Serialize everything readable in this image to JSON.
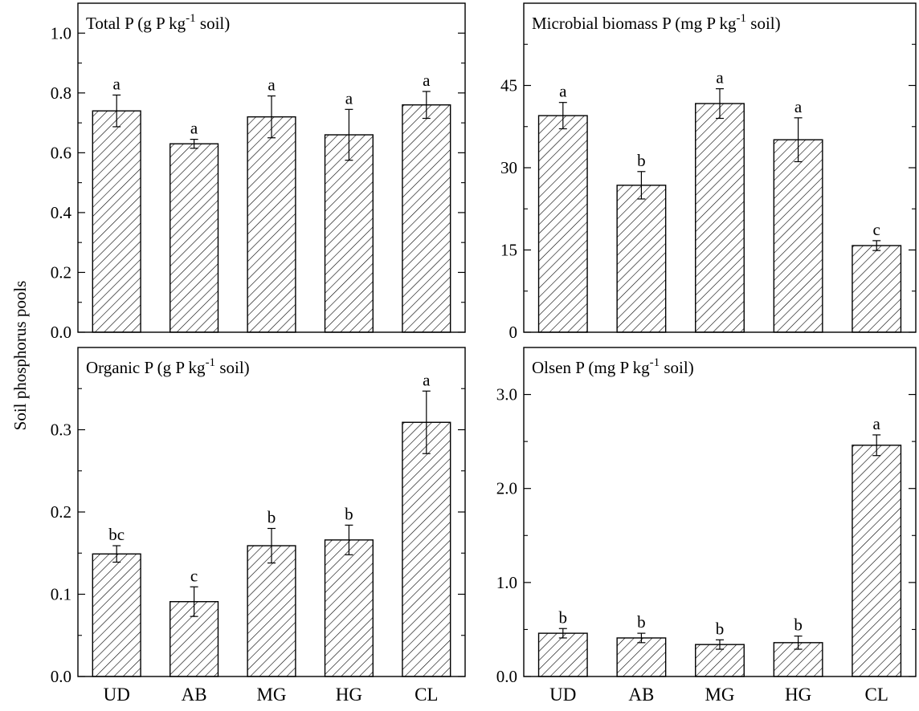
{
  "figure": {
    "ylabel": "Soil phosphorus pools"
  },
  "chart_data": [
    {
      "type": "bar",
      "title": "Total P (g P kg-1 soil)",
      "title_parts": {
        "pre": "Total P (g P kg",
        "sup": "-1",
        "post": " soil)"
      },
      "categories": [
        "UD",
        "AB",
        "MG",
        "HG",
        "CL"
      ],
      "values": [
        0.74,
        0.63,
        0.72,
        0.66,
        0.76
      ],
      "errors": [
        0.053,
        0.015,
        0.07,
        0.085,
        0.045
      ],
      "significance": [
        "a",
        "a",
        "a",
        "a",
        "a"
      ],
      "ylim": [
        0,
        1.1
      ],
      "yticks": [
        0.0,
        0.2,
        0.4,
        0.6,
        0.8,
        1.0
      ],
      "ytick_labels": [
        "0.0",
        "0.2",
        "0.4",
        "0.6",
        "0.8",
        "1.0"
      ],
      "yminor": [
        0.1,
        0.3,
        0.5,
        0.7,
        0.9
      ],
      "show_xticklabels": false,
      "xlabel": "",
      "ylabel": "",
      "grid": false,
      "pattern": "diagonal-hatch"
    },
    {
      "type": "bar",
      "title": "Microbial biomass P (mg P kg-1 soil)",
      "title_parts": {
        "pre": "Microbial biomass P (mg P kg",
        "sup": "-1",
        "post": " soil)"
      },
      "categories": [
        "UD",
        "AB",
        "MG",
        "HG",
        "CL"
      ],
      "values": [
        39.5,
        26.8,
        41.7,
        35.1,
        15.8
      ],
      "errors": [
        2.4,
        2.5,
        2.7,
        4.0,
        0.9
      ],
      "significance": [
        "a",
        "b",
        "a",
        "a",
        "c"
      ],
      "ylim": [
        0,
        60
      ],
      "yticks": [
        0,
        15,
        30,
        45
      ],
      "ytick_labels": [
        "0",
        "15",
        "30",
        "45"
      ],
      "yminor": [
        7.5,
        22.5,
        37.5,
        52.5
      ],
      "show_xticklabels": false,
      "xlabel": "",
      "ylabel": "",
      "grid": false,
      "pattern": "diagonal-hatch"
    },
    {
      "type": "bar",
      "title": "Organic P (g P kg-1 soil)",
      "title_parts": {
        "pre": "Organic P (g P kg",
        "sup": "-1",
        "post": " soil)"
      },
      "categories": [
        "UD",
        "AB",
        "MG",
        "HG",
        "CL"
      ],
      "values": [
        0.149,
        0.091,
        0.159,
        0.166,
        0.309
      ],
      "errors": [
        0.01,
        0.018,
        0.021,
        0.018,
        0.038
      ],
      "significance": [
        "bc",
        "c",
        "b",
        "b",
        "a"
      ],
      "ylim": [
        0,
        0.4
      ],
      "yticks": [
        0.0,
        0.1,
        0.2,
        0.3
      ],
      "ytick_labels": [
        "0.0",
        "0.1",
        "0.2",
        "0.3"
      ],
      "yminor": [
        0.05,
        0.15,
        0.25,
        0.35
      ],
      "show_xticklabels": true,
      "xlabel": "",
      "ylabel": "",
      "grid": false,
      "pattern": "diagonal-hatch"
    },
    {
      "type": "bar",
      "title": "Olsen P (mg P kg-1 soil)",
      "title_parts": {
        "pre": "Olsen P (mg P kg",
        "sup": "-1",
        "post": " soil)"
      },
      "categories": [
        "UD",
        "AB",
        "MG",
        "HG",
        "CL"
      ],
      "values": [
        0.46,
        0.41,
        0.34,
        0.36,
        2.46
      ],
      "errors": [
        0.05,
        0.05,
        0.05,
        0.07,
        0.11
      ],
      "significance": [
        "b",
        "b",
        "b",
        "b",
        "a"
      ],
      "ylim": [
        0,
        3.5
      ],
      "yticks": [
        0.0,
        1.0,
        2.0,
        3.0
      ],
      "ytick_labels": [
        "0.0",
        "1.0",
        "2.0",
        "3.0"
      ],
      "yminor": [
        0.5,
        1.5,
        2.5
      ],
      "show_xticklabels": true,
      "xlabel": "",
      "ylabel": "",
      "grid": false,
      "pattern": "diagonal-hatch"
    }
  ]
}
